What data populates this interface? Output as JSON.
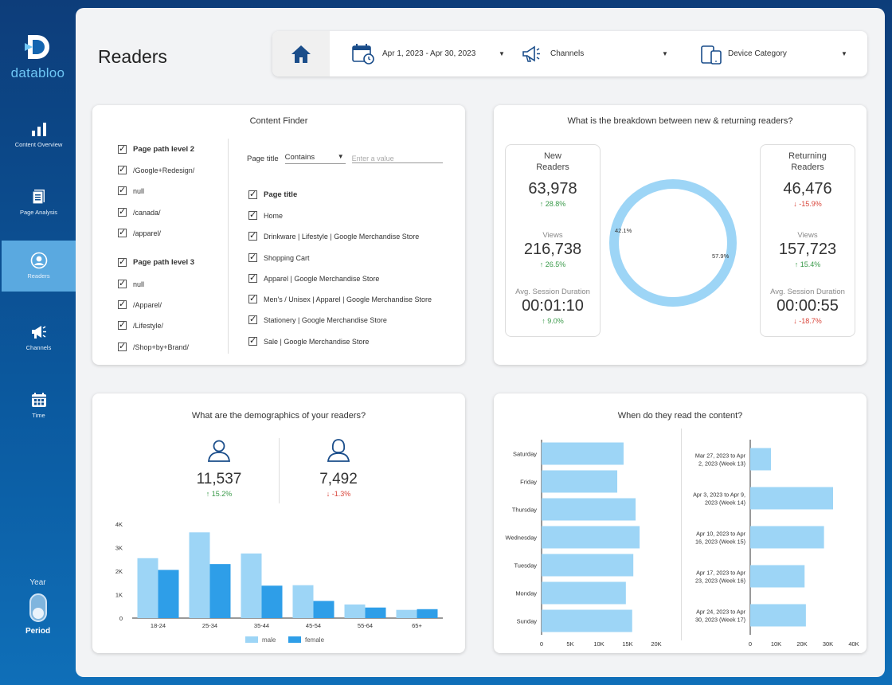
{
  "brand": {
    "name": "databloo"
  },
  "sidebar": {
    "items": [
      {
        "label": "Content Overview",
        "icon": "bar-chart-icon"
      },
      {
        "label": "Page Analysis",
        "icon": "document-icon"
      },
      {
        "label": "Readers",
        "icon": "user-circle-icon",
        "active": true
      },
      {
        "label": "Channels",
        "icon": "megaphone-icon"
      },
      {
        "label": "Time",
        "icon": "calendar-icon"
      }
    ],
    "period": {
      "year_label": "Year",
      "period_label": "Period"
    }
  },
  "page": {
    "title": "Readers"
  },
  "filters": {
    "date_range": "Apr 1, 2023 - Apr 30, 2023",
    "channels": "Channels",
    "device": "Device Category"
  },
  "content_finder": {
    "title": "Content Finder",
    "level2_header": "Page path level 2",
    "level2_items": [
      "/Google+Redesign/",
      "null",
      "/canada/",
      "/apparel/"
    ],
    "level3_header": "Page path level 3",
    "level3_items": [
      "null",
      "/Apparel/",
      "/Lifestyle/",
      "/Shop+by+Brand/"
    ],
    "page_title_filter_label": "Page title",
    "page_title_operator": "Contains",
    "page_title_placeholder": "Enter a value",
    "page_title_header": "Page title",
    "page_title_items": [
      "Home",
      "Drinkware | Lifestyle | Google Merchandise Store",
      "Shopping Cart",
      "Apparel | Google Merchandise Store",
      "Men's / Unisex | Apparel | Google Merchandise Store",
      "Stationery | Google Merchandise Store",
      "Sale | Google Merchandise Store"
    ]
  },
  "breakdown": {
    "title": "What is the breakdown between new & returning readers?",
    "new": {
      "label": "New\nReaders",
      "readers": "63,978",
      "readers_delta": "28.8%",
      "readers_dir": "up",
      "views_label": "Views",
      "views": "216,738",
      "views_delta": "26.5%",
      "views_dir": "up",
      "duration_label": "Avg. Session Duration",
      "duration": "00:01:10",
      "duration_delta": "9.0%",
      "duration_dir": "up"
    },
    "returning": {
      "label": "Returning\nReaders",
      "readers": "46,476",
      "readers_delta": "-15.9%",
      "readers_dir": "down",
      "views_label": "Views",
      "views": "157,723",
      "views_delta": "15.4%",
      "views_dir": "up",
      "duration_label": "Avg. Session Duration",
      "duration": "00:00:55",
      "duration_delta": "-18.7%",
      "duration_dir": "down"
    },
    "donut": {
      "slices": [
        {
          "label": "42.1%",
          "value": 42.1,
          "color": "#3aa3e6"
        },
        {
          "label": "57.9%",
          "value": 57.9,
          "color": "#9dd5f6"
        }
      ]
    }
  },
  "demographics": {
    "title": "What are the demographics of your readers?",
    "male": {
      "value": "11,537",
      "delta": "15.2%",
      "dir": "up"
    },
    "female": {
      "value": "7,492",
      "delta": "-1.3%",
      "dir": "down"
    }
  },
  "when": {
    "title": "When do they read the content?"
  },
  "chart_data": [
    {
      "type": "bar",
      "categories": [
        "18-24",
        "25-34",
        "35-44",
        "45-54",
        "55-64",
        "65+"
      ],
      "series": [
        {
          "name": "male",
          "values": [
            2550,
            3650,
            2750,
            1400,
            580,
            350
          ],
          "color": "#9dd5f6"
        },
        {
          "name": "female",
          "values": [
            2050,
            2300,
            1380,
            730,
            450,
            380
          ],
          "color": "#2e9ee8"
        }
      ],
      "ylim": [
        0,
        4000
      ],
      "yticks": [
        "0",
        "1K",
        "2K",
        "3K",
        "4K"
      ],
      "legend": "bottom"
    },
    {
      "type": "bar",
      "orientation": "horizontal",
      "categories": [
        "Saturday",
        "Friday",
        "Thursday",
        "Wednesday",
        "Tuesday",
        "Monday",
        "Sunday"
      ],
      "values": [
        14300,
        13200,
        16400,
        17100,
        16000,
        14700,
        15800
      ],
      "xlim": [
        0,
        20000
      ],
      "xticks": [
        "0",
        "5K",
        "10K",
        "15K",
        "20K"
      ],
      "color": "#9dd5f6"
    },
    {
      "type": "bar",
      "orientation": "horizontal",
      "categories": [
        "Mar 27, 2023 to Apr 2, 2023 (Week 13)",
        "Apr 3, 2023 to Apr 9, 2023 (Week 14)",
        "Apr 10, 2023 to Apr 16, 2023 (Week 15)",
        "Apr 17, 2023 to Apr 23, 2023 (Week 16)",
        "Apr 24, 2023 to Apr 30, 2023 (Week 17)"
      ],
      "category_lines": [
        [
          "Mar 27, 2023 to Apr",
          "2, 2023 (Week 13)"
        ],
        [
          "Apr 3, 2023 to Apr 9,",
          "2023 (Week 14)"
        ],
        [
          "Apr 10, 2023 to Apr",
          "16, 2023 (Week 15)"
        ],
        [
          "Apr 17, 2023 to Apr",
          "23, 2023 (Week 16)"
        ],
        [
          "Apr 24, 2023 to Apr",
          "30, 2023 (Week 17)"
        ]
      ],
      "values": [
        8000,
        32000,
        28500,
        21000,
        21500
      ],
      "xlim": [
        0,
        40000
      ],
      "xticks": [
        "0",
        "10K",
        "20K",
        "30K",
        "40K"
      ],
      "color": "#9dd5f6"
    }
  ]
}
